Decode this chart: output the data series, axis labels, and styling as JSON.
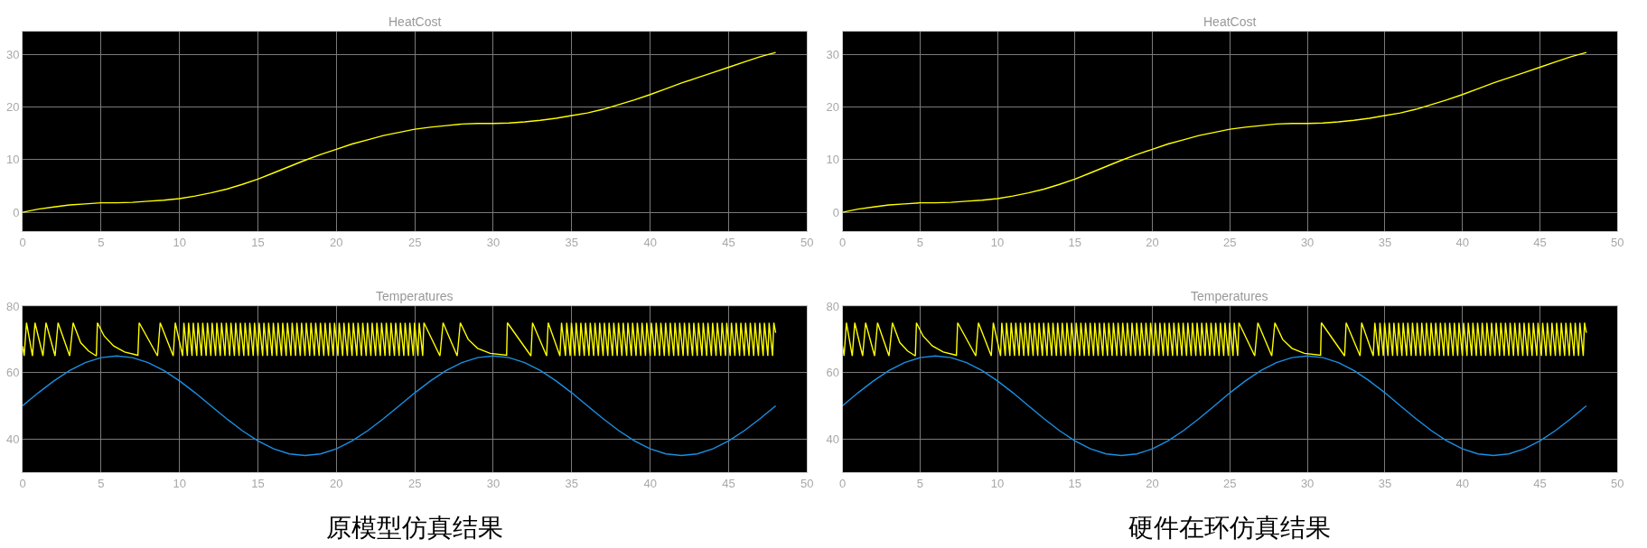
{
  "chart_data": [
    {
      "type": "line",
      "title": "HeatCost",
      "xlim": [
        0,
        50
      ],
      "xticks": [
        0,
        5,
        10,
        15,
        20,
        25,
        30,
        35,
        40,
        45,
        50
      ],
      "ylim": [
        -3.6,
        34.4
      ],
      "yticks": [
        0,
        10,
        20,
        30
      ],
      "grid": true,
      "series": [
        {
          "color": "#ffff00",
          "x": [
            0,
            1,
            2,
            3,
            4,
            5,
            6,
            7,
            8,
            9,
            10,
            11,
            12,
            13,
            14,
            15,
            16,
            17,
            18,
            19,
            20,
            21,
            22,
            23,
            24,
            25,
            26,
            27,
            28,
            29,
            30,
            31,
            32,
            33,
            34,
            35,
            36,
            37,
            38,
            39,
            40,
            41,
            42,
            43,
            44,
            45,
            46,
            47,
            48
          ],
          "values": [
            0,
            0.6,
            1.0,
            1.4,
            1.6,
            1.8,
            1.8,
            1.9,
            2.1,
            2.3,
            2.6,
            3.1,
            3.7,
            4.4,
            5.3,
            6.3,
            7.5,
            8.7,
            9.9,
            11.0,
            12.0,
            13.0,
            13.8,
            14.6,
            15.2,
            15.8,
            16.2,
            16.5,
            16.8,
            16.9,
            16.9,
            17.0,
            17.2,
            17.5,
            17.9,
            18.4,
            18.9,
            19.6,
            20.5,
            21.4,
            22.4,
            23.5,
            24.6,
            25.6,
            26.6,
            27.6,
            28.6,
            29.6,
            30.4
          ]
        }
      ]
    },
    {
      "type": "line",
      "title": "HeatCost",
      "xlim": [
        0,
        50
      ],
      "xticks": [
        0,
        5,
        10,
        15,
        20,
        25,
        30,
        35,
        40,
        45,
        50
      ],
      "ylim": [
        -3.6,
        34.4
      ],
      "yticks": [
        0,
        10,
        20,
        30
      ],
      "grid": true,
      "series": [
        {
          "color": "#ffff00",
          "x": [
            0,
            1,
            2,
            3,
            4,
            5,
            6,
            7,
            8,
            9,
            10,
            11,
            12,
            13,
            14,
            15,
            16,
            17,
            18,
            19,
            20,
            21,
            22,
            23,
            24,
            25,
            26,
            27,
            28,
            29,
            30,
            31,
            32,
            33,
            34,
            35,
            36,
            37,
            38,
            39,
            40,
            41,
            42,
            43,
            44,
            45,
            46,
            47,
            48
          ],
          "values": [
            0,
            0.6,
            1.0,
            1.4,
            1.6,
            1.8,
            1.8,
            1.9,
            2.1,
            2.3,
            2.6,
            3.1,
            3.7,
            4.4,
            5.3,
            6.3,
            7.5,
            8.7,
            9.9,
            11.0,
            12.0,
            13.0,
            13.8,
            14.6,
            15.2,
            15.8,
            16.2,
            16.5,
            16.8,
            16.9,
            16.9,
            17.0,
            17.2,
            17.5,
            17.9,
            18.4,
            18.9,
            19.6,
            20.5,
            21.4,
            22.4,
            23.5,
            24.6,
            25.6,
            26.6,
            27.6,
            28.6,
            29.6,
            30.4
          ]
        }
      ]
    },
    {
      "type": "line",
      "title": "Temperatures",
      "xlim": [
        0,
        50
      ],
      "xticks": [
        0,
        5,
        10,
        15,
        20,
        25,
        30,
        35,
        40,
        45,
        50
      ],
      "ylim": [
        30,
        80
      ],
      "yticks": [
        40,
        60,
        80
      ],
      "grid": true,
      "annotations": [
        "原模型仿真结果"
      ],
      "series": [
        {
          "color": "#ffff00",
          "x": [
            0,
            0.1,
            0.25,
            0.63,
            0.79,
            1.3,
            1.49,
            2.07,
            2.26,
            3,
            3.22,
            3.7,
            4.2,
            4.7,
            4.77,
            5.2,
            5.8,
            6.5,
            7.35,
            7.43,
            8.6,
            8.77,
            9.6,
            9.73,
            10.2,
            10.28,
            10.5,
            10.58,
            10.8,
            10.88,
            11.1,
            11.18,
            11.4,
            11.48,
            11.7,
            11.78,
            12,
            12.08,
            12.3,
            12.38,
            12.6,
            12.68,
            12.9,
            12.98,
            13.2,
            13.28,
            13.5,
            13.58,
            13.8,
            13.88,
            14.1,
            14.18,
            14.4,
            14.48,
            14.7,
            14.78,
            15,
            15.08,
            15.3,
            15.38,
            15.6,
            15.68,
            15.9,
            15.98,
            16.2,
            16.28,
            16.5,
            16.58,
            16.8,
            16.88,
            17.1,
            17.18,
            17.4,
            17.48,
            17.7,
            17.78,
            18,
            18.08,
            18.3,
            18.38,
            18.6,
            18.68,
            18.9,
            18.98,
            19.2,
            19.28,
            19.5,
            19.58,
            19.8,
            19.88,
            20.1,
            20.18,
            20.4,
            20.48,
            20.7,
            20.78,
            21,
            21.08,
            21.3,
            21.38,
            21.6,
            21.68,
            21.9,
            21.98,
            22.2,
            22.28,
            22.5,
            22.58,
            22.8,
            22.88,
            23.1,
            23.18,
            23.4,
            23.48,
            23.7,
            23.78,
            24,
            24.08,
            24.3,
            24.38,
            24.6,
            24.68,
            24.9,
            24.98,
            25.2,
            25.28,
            25.5,
            25.58,
            26.6,
            26.8,
            27.7,
            27.9,
            28.4,
            29,
            29.8,
            30.85,
            30.9,
            32.4,
            32.5,
            33.4,
            33.5,
            34.25,
            34.35,
            34.6,
            34.68,
            34.9,
            34.98,
            35.2,
            35.28,
            35.5,
            35.58,
            35.8,
            35.88,
            36.1,
            36.18,
            36.4,
            36.48,
            36.7,
            36.78,
            37,
            37.08,
            37.3,
            37.38,
            37.6,
            37.68,
            37.9,
            37.98,
            38.2,
            38.28,
            38.5,
            38.58,
            38.8,
            38.88,
            39.1,
            39.18,
            39.4,
            39.48,
            39.7,
            39.78,
            40,
            40.08,
            40.3,
            40.38,
            40.6,
            40.68,
            40.9,
            40.98,
            41.2,
            41.28,
            41.5,
            41.58,
            41.8,
            41.88,
            42.1,
            42.18,
            42.4,
            42.48,
            42.7,
            42.78,
            43,
            43.08,
            43.3,
            43.38,
            43.6,
            43.68,
            43.9,
            43.98,
            44.2,
            44.28,
            44.5,
            44.58,
            44.8,
            44.88,
            45.1,
            45.18,
            45.4,
            45.48,
            45.7,
            45.78,
            46,
            46.08,
            46.3,
            46.38,
            46.6,
            46.68,
            46.9,
            46.98,
            47.2,
            47.28,
            47.5,
            47.58,
            47.8,
            47.88,
            48
          ],
          "values": [
            68,
            65,
            75,
            65,
            75,
            65,
            75,
            65,
            75,
            65,
            75,
            69,
            66.5,
            65,
            75,
            71,
            68,
            66.2,
            65.2,
            75,
            65,
            75,
            65,
            75,
            65,
            75,
            65,
            75,
            65,
            75,
            65,
            75,
            65,
            75,
            65,
            75,
            65,
            75,
            65,
            75,
            65,
            75,
            65,
            75,
            65,
            75,
            65,
            75,
            65,
            75,
            65,
            75,
            65,
            75,
            65,
            75,
            65,
            75,
            65,
            75,
            65,
            75,
            65,
            75,
            65,
            75,
            65,
            75,
            65,
            75,
            65,
            75,
            65,
            75,
            65,
            75,
            65,
            75,
            65,
            75,
            65,
            75,
            65,
            75,
            65,
            75,
            65,
            75,
            65,
            75,
            65,
            75,
            65,
            75,
            65,
            75,
            65,
            75,
            65,
            75,
            65,
            75,
            65,
            75,
            65,
            75,
            65,
            75,
            65,
            75,
            65,
            75,
            65,
            75,
            65,
            75,
            65,
            75,
            65,
            75,
            65,
            75,
            65,
            75,
            65,
            75,
            65,
            75,
            65,
            75,
            65,
            75,
            70,
            67.3,
            65.8,
            65.2,
            75,
            65,
            75,
            65,
            75,
            65,
            75,
            65,
            75,
            65,
            75,
            65,
            75,
            65,
            75,
            65,
            75,
            65,
            75,
            65,
            75,
            65,
            75,
            65,
            75,
            65,
            75,
            65,
            75,
            65,
            75,
            65,
            75,
            65,
            75,
            65,
            75,
            65,
            75,
            65,
            75,
            65,
            75,
            65,
            75,
            65,
            75,
            65,
            75,
            65,
            75,
            65,
            75,
            65,
            75,
            65,
            75,
            65,
            75,
            65,
            75,
            65,
            75,
            65,
            75,
            65,
            75,
            65,
            75,
            65,
            75,
            65,
            75,
            65,
            75,
            65,
            75,
            65,
            75,
            65,
            75,
            65,
            75,
            65,
            75,
            65,
            75,
            65,
            75,
            65,
            75,
            65,
            75,
            65,
            75,
            65,
            75,
            72
          ]
        },
        {
          "color": "#1a8fe3",
          "x": [
            0,
            1,
            2,
            3,
            4,
            5,
            6,
            7,
            8,
            9,
            10,
            11,
            12,
            13,
            14,
            15,
            16,
            17,
            18,
            19,
            20,
            21,
            22,
            23,
            24,
            25,
            26,
            27,
            28,
            29,
            30,
            31,
            32,
            33,
            34,
            35,
            36,
            37,
            38,
            39,
            40,
            41,
            42,
            43,
            44,
            45,
            46,
            47,
            48
          ],
          "values": [
            50,
            53.9,
            57.5,
            60.6,
            63.0,
            64.5,
            65,
            64.5,
            63.0,
            60.6,
            57.5,
            53.9,
            50,
            46.1,
            42.5,
            39.4,
            37.0,
            35.5,
            35,
            35.5,
            37.0,
            39.4,
            42.5,
            46.1,
            50,
            53.9,
            57.5,
            60.6,
            63.0,
            64.5,
            65,
            64.5,
            63.0,
            60.6,
            57.5,
            53.9,
            50,
            46.1,
            42.5,
            39.4,
            37.0,
            35.5,
            35,
            35.5,
            37.0,
            39.4,
            42.5,
            46.1,
            50
          ]
        }
      ]
    },
    {
      "type": "line",
      "title": "Temperatures",
      "xlim": [
        0,
        50
      ],
      "xticks": [
        0,
        5,
        10,
        15,
        20,
        25,
        30,
        35,
        40,
        45,
        50
      ],
      "ylim": [
        30,
        80
      ],
      "yticks": [
        40,
        60,
        80
      ],
      "grid": true,
      "annotations": [
        "硬件在环仿真结果"
      ],
      "series": [
        {
          "color": "#ffff00",
          "x": [
            0,
            0.1,
            0.25,
            0.63,
            0.79,
            1.3,
            1.49,
            2.07,
            2.26,
            3,
            3.22,
            3.7,
            4.2,
            4.7,
            4.77,
            5.2,
            5.8,
            6.5,
            7.35,
            7.43,
            8.6,
            8.77,
            9.6,
            9.73,
            10.2,
            10.28,
            10.5,
            10.58,
            10.8,
            10.88,
            11.1,
            11.18,
            11.4,
            11.48,
            11.7,
            11.78,
            12,
            12.08,
            12.3,
            12.38,
            12.6,
            12.68,
            12.9,
            12.98,
            13.2,
            13.28,
            13.5,
            13.58,
            13.8,
            13.88,
            14.1,
            14.18,
            14.4,
            14.48,
            14.7,
            14.78,
            15,
            15.08,
            15.3,
            15.38,
            15.6,
            15.68,
            15.9,
            15.98,
            16.2,
            16.28,
            16.5,
            16.58,
            16.8,
            16.88,
            17.1,
            17.18,
            17.4,
            17.48,
            17.7,
            17.78,
            18,
            18.08,
            18.3,
            18.38,
            18.6,
            18.68,
            18.9,
            18.98,
            19.2,
            19.28,
            19.5,
            19.58,
            19.8,
            19.88,
            20.1,
            20.18,
            20.4,
            20.48,
            20.7,
            20.78,
            21,
            21.08,
            21.3,
            21.38,
            21.6,
            21.68,
            21.9,
            21.98,
            22.2,
            22.28,
            22.5,
            22.58,
            22.8,
            22.88,
            23.1,
            23.18,
            23.4,
            23.48,
            23.7,
            23.78,
            24,
            24.08,
            24.3,
            24.38,
            24.6,
            24.68,
            24.9,
            24.98,
            25.2,
            25.28,
            25.5,
            25.58,
            26.6,
            26.8,
            27.7,
            27.9,
            28.4,
            29,
            29.8,
            30.85,
            30.9,
            32.4,
            32.5,
            33.4,
            33.5,
            34.25,
            34.35,
            34.6,
            34.68,
            34.9,
            34.98,
            35.2,
            35.28,
            35.5,
            35.58,
            35.8,
            35.88,
            36.1,
            36.18,
            36.4,
            36.48,
            36.7,
            36.78,
            37,
            37.08,
            37.3,
            37.38,
            37.6,
            37.68,
            37.9,
            37.98,
            38.2,
            38.28,
            38.5,
            38.58,
            38.8,
            38.88,
            39.1,
            39.18,
            39.4,
            39.48,
            39.7,
            39.78,
            40,
            40.08,
            40.3,
            40.38,
            40.6,
            40.68,
            40.9,
            40.98,
            41.2,
            41.28,
            41.5,
            41.58,
            41.8,
            41.88,
            42.1,
            42.18,
            42.4,
            42.48,
            42.7,
            42.78,
            43,
            43.08,
            43.3,
            43.38,
            43.6,
            43.68,
            43.9,
            43.98,
            44.2,
            44.28,
            44.5,
            44.58,
            44.8,
            44.88,
            45.1,
            45.18,
            45.4,
            45.48,
            45.7,
            45.78,
            46,
            46.08,
            46.3,
            46.38,
            46.6,
            46.68,
            46.9,
            46.98,
            47.2,
            47.28,
            47.5,
            47.58,
            47.8,
            47.88,
            48
          ],
          "values": [
            68,
            65,
            75,
            65,
            75,
            65,
            75,
            65,
            75,
            65,
            75,
            69,
            66.5,
            65,
            75,
            71,
            68,
            66.2,
            65.2,
            75,
            65,
            75,
            65,
            75,
            65,
            75,
            65,
            75,
            65,
            75,
            65,
            75,
            65,
            75,
            65,
            75,
            65,
            75,
            65,
            75,
            65,
            75,
            65,
            75,
            65,
            75,
            65,
            75,
            65,
            75,
            65,
            75,
            65,
            75,
            65,
            75,
            65,
            75,
            65,
            75,
            65,
            75,
            65,
            75,
            65,
            75,
            65,
            75,
            65,
            75,
            65,
            75,
            65,
            75,
            65,
            75,
            65,
            75,
            65,
            75,
            65,
            75,
            65,
            75,
            65,
            75,
            65,
            75,
            65,
            75,
            65,
            75,
            65,
            75,
            65,
            75,
            65,
            75,
            65,
            75,
            65,
            75,
            65,
            75,
            65,
            75,
            65,
            75,
            65,
            75,
            65,
            75,
            65,
            75,
            65,
            75,
            65,
            75,
            65,
            75,
            65,
            75,
            65,
            75,
            65,
            75,
            65,
            75,
            65,
            75,
            65,
            75,
            70,
            67.3,
            65.8,
            65.2,
            75,
            65,
            75,
            65,
            75,
            65,
            75,
            65,
            75,
            65,
            75,
            65,
            75,
            65,
            75,
            65,
            75,
            65,
            75,
            65,
            75,
            65,
            75,
            65,
            75,
            65,
            75,
            65,
            75,
            65,
            75,
            65,
            75,
            65,
            75,
            65,
            75,
            65,
            75,
            65,
            75,
            65,
            75,
            65,
            75,
            65,
            75,
            65,
            75,
            65,
            75,
            65,
            75,
            65,
            75,
            65,
            75,
            65,
            75,
            65,
            75,
            65,
            75,
            65,
            75,
            65,
            75,
            65,
            75,
            65,
            75,
            65,
            75,
            65,
            75,
            65,
            75,
            65,
            75,
            65,
            75,
            65,
            75,
            65,
            75,
            65,
            75,
            65,
            75,
            65,
            75,
            65,
            75,
            65,
            75,
            65,
            75,
            72
          ]
        },
        {
          "color": "#1a8fe3",
          "x": [
            0,
            1,
            2,
            3,
            4,
            5,
            6,
            7,
            8,
            9,
            10,
            11,
            12,
            13,
            14,
            15,
            16,
            17,
            18,
            19,
            20,
            21,
            22,
            23,
            24,
            25,
            26,
            27,
            28,
            29,
            30,
            31,
            32,
            33,
            34,
            35,
            36,
            37,
            38,
            39,
            40,
            41,
            42,
            43,
            44,
            45,
            46,
            47,
            48
          ],
          "values": [
            50,
            53.9,
            57.5,
            60.6,
            63.0,
            64.5,
            65,
            64.5,
            63.0,
            60.6,
            57.5,
            53.9,
            50,
            46.1,
            42.5,
            39.4,
            37.0,
            35.5,
            35,
            35.5,
            37.0,
            39.4,
            42.5,
            46.1,
            50,
            53.9,
            57.5,
            60.6,
            63.0,
            64.5,
            65,
            64.5,
            63.0,
            60.6,
            57.5,
            53.9,
            50,
            46.1,
            42.5,
            39.4,
            37.0,
            35.5,
            35,
            35.5,
            37.0,
            39.4,
            42.5,
            46.1,
            50
          ]
        }
      ]
    }
  ]
}
